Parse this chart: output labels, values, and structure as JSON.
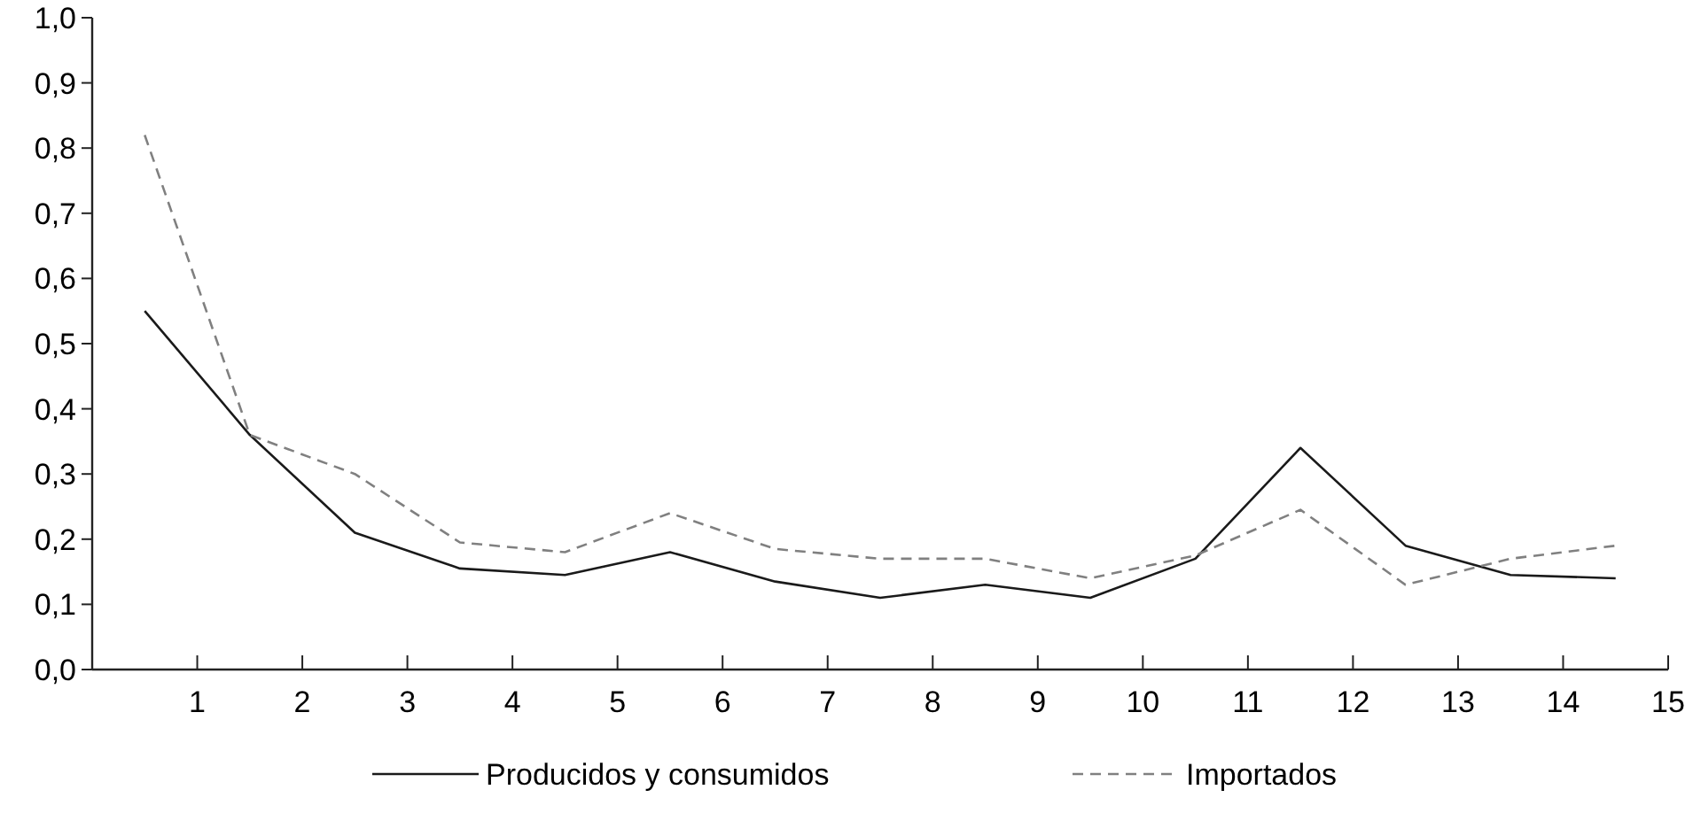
{
  "chart_data": {
    "type": "line",
    "x": [
      0.5,
      1.5,
      2.5,
      3.5,
      4.5,
      5.5,
      6.5,
      7.5,
      8.5,
      9.5,
      10.5,
      11.5,
      12.5,
      13.5,
      14.5
    ],
    "series": [
      {
        "name": "Producidos y consumidos",
        "color": "#1a1a1a",
        "line_style": "solid",
        "values": [
          0.55,
          0.36,
          0.21,
          0.155,
          0.145,
          0.18,
          0.135,
          0.11,
          0.13,
          0.11,
          0.17,
          0.34,
          0.19,
          0.145,
          0.14
        ]
      },
      {
        "name": "Importados",
        "color": "#808080",
        "line_style": "dashed",
        "values": [
          0.82,
          0.36,
          0.3,
          0.195,
          0.18,
          0.24,
          0.185,
          0.17,
          0.17,
          0.14,
          0.175,
          0.245,
          0.13,
          0.17,
          0.19
        ]
      }
    ],
    "xlim": [
      0,
      15
    ],
    "xticks": [
      1,
      2,
      3,
      4,
      5,
      6,
      7,
      8,
      9,
      10,
      11,
      12,
      13,
      14,
      15
    ],
    "ylim": [
      0,
      1
    ],
    "yticks": [
      {
        "value": 0,
        "label": "0,0"
      },
      {
        "value": 0.1,
        "label": "0,1"
      },
      {
        "value": 0.2,
        "label": "0,2"
      },
      {
        "value": 0.3,
        "label": "0,3"
      },
      {
        "value": 0.4,
        "label": "0,4"
      },
      {
        "value": 0.5,
        "label": "0,5"
      },
      {
        "value": 0.6,
        "label": "0,6"
      },
      {
        "value": 0.7,
        "label": "0,7"
      },
      {
        "value": 0.8,
        "label": "0,8"
      },
      {
        "value": 0.9,
        "label": "0,9"
      },
      {
        "value": 1,
        "label": "1,0"
      }
    ],
    "grid": false,
    "legend": "bottom",
    "marker": "none"
  }
}
